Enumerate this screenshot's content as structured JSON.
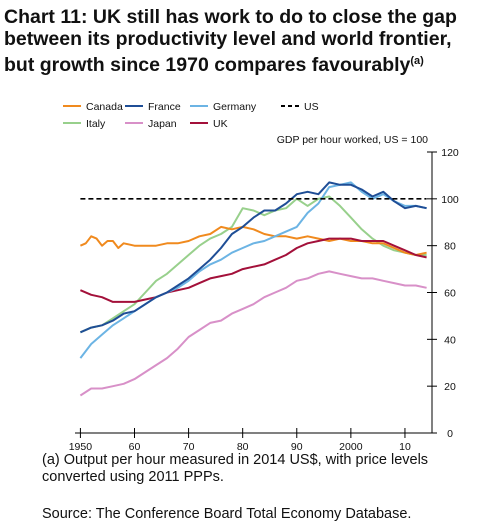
{
  "title": "Chart 11: UK still has work to do to close the gap between its productivity level and world frontier, but growth since 1970 compares favourably",
  "title_superscript": "(a)",
  "footnote": "(a) Output per hour measured in 2014 US$, with price levels converted using 2011 PPPs.",
  "source": "Source: The Conference Board Total Economy Database.",
  "chart_data": {
    "type": "line",
    "ylabel": "GDP per hour worked, US = 100",
    "xlim": [
      1949,
      2015
    ],
    "ylim": [
      0,
      120
    ],
    "x_ticks": [
      1950,
      1960,
      1970,
      1980,
      1990,
      2000,
      2010
    ],
    "x_tick_labels": [
      "1950",
      "60",
      "70",
      "80",
      "90",
      "2000",
      "10"
    ],
    "y_ticks": [
      0,
      20,
      40,
      60,
      80,
      100,
      120
    ],
    "grid": false,
    "legend_position": "top",
    "colors": {
      "Canada": "#f08a1e",
      "France": "#1f4e96",
      "Germany": "#6cb4e4",
      "US": "#000000",
      "Italy": "#98d08c",
      "Japan": "#d890c8",
      "UK": "#a3103a"
    },
    "series": [
      {
        "name": "Canada",
        "style": "solid",
        "x": [
          1950,
          1951,
          1952,
          1953,
          1954,
          1955,
          1956,
          1957,
          1958,
          1960,
          1962,
          1964,
          1966,
          1968,
          1970,
          1972,
          1974,
          1976,
          1978,
          1980,
          1982,
          1984,
          1986,
          1988,
          1990,
          1992,
          1994,
          1996,
          1998,
          2000,
          2002,
          2004,
          2006,
          2008,
          2010,
          2012,
          2014
        ],
        "y": [
          80,
          81,
          84,
          83,
          80,
          82,
          82,
          79,
          81,
          80,
          80,
          80,
          81,
          81,
          82,
          84,
          85,
          88,
          87,
          88,
          87,
          85,
          84,
          84,
          83,
          84,
          83,
          82,
          83,
          82,
          82,
          81,
          81,
          79,
          77,
          76,
          77
        ]
      },
      {
        "name": "France",
        "style": "solid",
        "x": [
          1950,
          1952,
          1954,
          1956,
          1958,
          1960,
          1962,
          1964,
          1966,
          1968,
          1970,
          1972,
          1974,
          1976,
          1978,
          1980,
          1982,
          1984,
          1986,
          1988,
          1990,
          1992,
          1994,
          1996,
          1998,
          2000,
          2002,
          2004,
          2006,
          2008,
          2010,
          2012,
          2014
        ],
        "y": [
          43,
          45,
          46,
          48,
          51,
          52,
          55,
          58,
          60,
          63,
          66,
          70,
          74,
          79,
          85,
          88,
          92,
          95,
          95,
          98,
          102,
          103,
          102,
          107,
          106,
          106,
          104,
          101,
          103,
          99,
          96,
          97,
          96
        ]
      },
      {
        "name": "Germany",
        "style": "solid",
        "x": [
          1950,
          1952,
          1954,
          1956,
          1958,
          1960,
          1962,
          1964,
          1966,
          1968,
          1970,
          1972,
          1974,
          1976,
          1978,
          1980,
          1982,
          1984,
          1986,
          1988,
          1990,
          1992,
          1994,
          1996,
          1998,
          2000,
          2002,
          2004,
          2006,
          2008,
          2010,
          2012,
          2014
        ],
        "y": [
          32,
          38,
          42,
          46,
          49,
          52,
          55,
          58,
          60,
          62,
          65,
          69,
          72,
          74,
          77,
          79,
          81,
          82,
          84,
          86,
          88,
          94,
          98,
          105,
          106,
          107,
          103,
          100,
          102,
          99,
          97,
          97,
          96
        ]
      },
      {
        "name": "US",
        "style": "dashed",
        "x": [
          1950,
          2014
        ],
        "y": [
          100,
          100
        ]
      },
      {
        "name": "Italy",
        "style": "solid",
        "x": [
          1950,
          1952,
          1954,
          1956,
          1958,
          1960,
          1962,
          1964,
          1966,
          1968,
          1970,
          1972,
          1974,
          1976,
          1978,
          1980,
          1982,
          1984,
          1986,
          1988,
          1990,
          1992,
          1994,
          1996,
          1998,
          2000,
          2002,
          2004,
          2006,
          2008,
          2010,
          2012,
          2014
        ],
        "y": [
          43,
          45,
          46,
          49,
          52,
          55,
          60,
          65,
          68,
          72,
          76,
          80,
          83,
          85,
          88,
          96,
          95,
          93,
          95,
          96,
          100,
          97,
          100,
          101,
          97,
          92,
          87,
          83,
          80,
          78,
          77,
          76,
          76
        ]
      },
      {
        "name": "Japan",
        "style": "solid",
        "x": [
          1950,
          1952,
          1954,
          1956,
          1958,
          1960,
          1962,
          1964,
          1966,
          1968,
          1970,
          1972,
          1974,
          1976,
          1978,
          1980,
          1982,
          1984,
          1986,
          1988,
          1990,
          1992,
          1994,
          1996,
          1998,
          2000,
          2002,
          2004,
          2006,
          2008,
          2010,
          2012,
          2014
        ],
        "y": [
          16,
          19,
          19,
          20,
          21,
          23,
          26,
          29,
          32,
          36,
          41,
          44,
          47,
          48,
          51,
          53,
          55,
          58,
          60,
          62,
          65,
          66,
          68,
          69,
          68,
          67,
          66,
          66,
          65,
          64,
          63,
          63,
          62
        ]
      },
      {
        "name": "UK",
        "style": "solid",
        "x": [
          1950,
          1952,
          1954,
          1956,
          1958,
          1960,
          1962,
          1964,
          1966,
          1968,
          1970,
          1972,
          1974,
          1976,
          1978,
          1980,
          1982,
          1984,
          1986,
          1988,
          1990,
          1992,
          1994,
          1996,
          1998,
          2000,
          2002,
          2004,
          2006,
          2008,
          2010,
          2012,
          2014
        ],
        "y": [
          61,
          59,
          58,
          56,
          56,
          56,
          57,
          58,
          60,
          61,
          62,
          64,
          66,
          67,
          68,
          70,
          71,
          72,
          74,
          76,
          79,
          81,
          82,
          83,
          83,
          83,
          82,
          82,
          82,
          80,
          78,
          76,
          75
        ]
      }
    ]
  }
}
